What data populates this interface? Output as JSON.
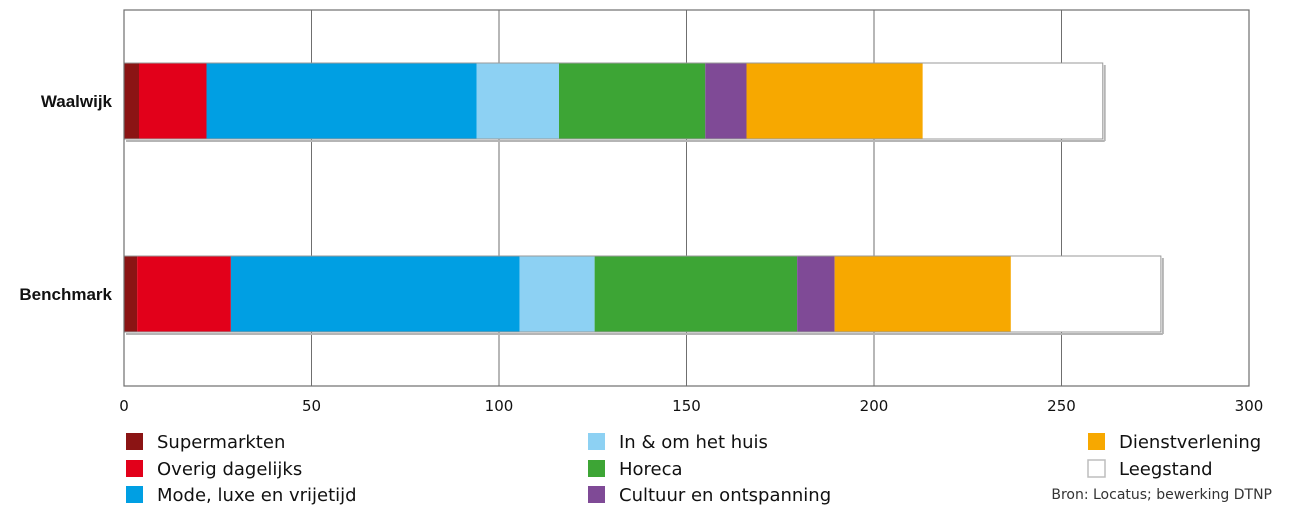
{
  "chart_data": {
    "type": "bar",
    "orientation": "horizontal",
    "stacked": true,
    "categories": [
      "Waalwijk",
      "Benchmark"
    ],
    "series": [
      {
        "name": "Supermarkten",
        "color": "#8b1414",
        "values": [
          4,
          3.5
        ]
      },
      {
        "name": "Overig dagelijks",
        "color": "#e2001a",
        "values": [
          18,
          25
        ]
      },
      {
        "name": "Mode, luxe en vrijetijd",
        "color": "#009fe3",
        "values": [
          72,
          77
        ]
      },
      {
        "name": "In & om het huis",
        "color": "#8dd1f3",
        "values": [
          22,
          20
        ]
      },
      {
        "name": "Horeca",
        "color": "#3da535",
        "values": [
          39,
          54
        ]
      },
      {
        "name": "Cultuur en ontspanning",
        "color": "#7f4a96",
        "values": [
          11,
          10
        ]
      },
      {
        "name": "Dienstverlening",
        "color": "#f7a800",
        "values": [
          47,
          47
        ]
      },
      {
        "name": "Leegstand",
        "color": "#ffffff",
        "values": [
          48,
          40
        ]
      }
    ],
    "xlim": [
      0,
      300
    ],
    "x_ticks": [
      0,
      50,
      100,
      150,
      200,
      250,
      300
    ],
    "grid": true,
    "legend_position": "bottom",
    "title": "",
    "xlabel": "",
    "ylabel": ""
  },
  "source": "Bron: Locatus; bewerking DTNP"
}
